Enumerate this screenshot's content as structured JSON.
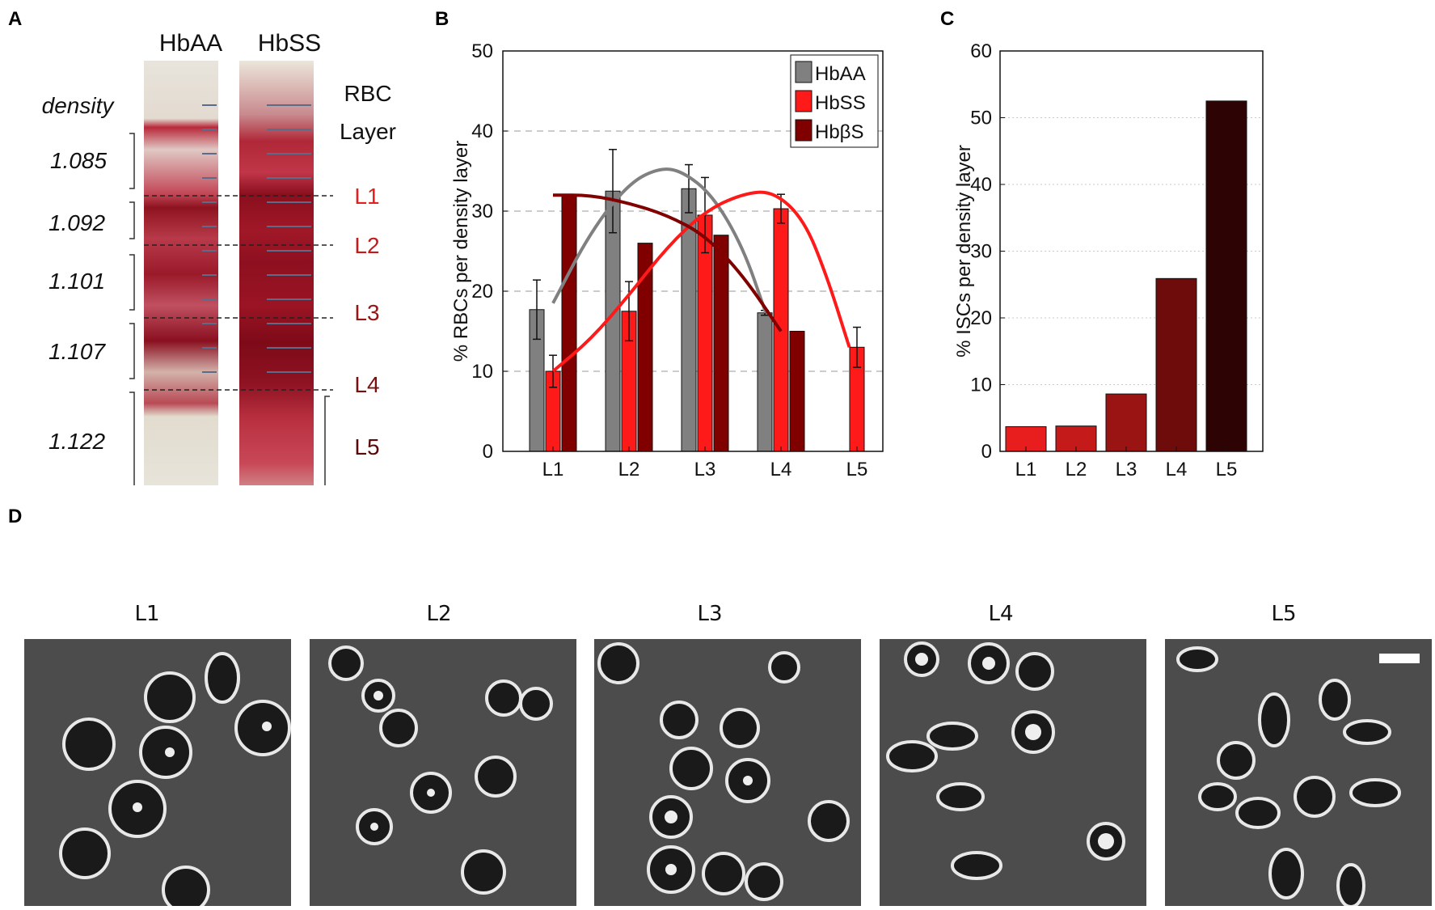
{
  "panels": {
    "a": "A",
    "b": "B",
    "c": "C",
    "d": "D"
  },
  "panel_a": {
    "tube_labels": [
      "HbAA",
      "HbSS"
    ],
    "density_heading": "density",
    "densities": [
      "1.085",
      "1.092",
      "1.101",
      "1.107",
      "1.122"
    ],
    "layer_heading_line1": "RBC",
    "layer_heading_line2": "Layer",
    "layers": [
      {
        "label": "L1",
        "color": "#e81e1e"
      },
      {
        "label": "L2",
        "color": "#c41a1a"
      },
      {
        "label": "L3",
        "color": "#9b1414"
      },
      {
        "label": "L4",
        "color": "#7a0f0f"
      },
      {
        "label": "L5",
        "color": "#5a0808"
      }
    ]
  },
  "chart_data": [
    {
      "type": "bar",
      "panel": "B",
      "title": "",
      "xlabel": "",
      "ylabel": "% RBCs per density layer",
      "ylim": [
        0,
        50
      ],
      "yticks": [
        0,
        10,
        20,
        30,
        40,
        50
      ],
      "grid": "dashed horizontal at 10, 20, 30, 40",
      "categories": [
        "L1",
        "L2",
        "L3",
        "L4",
        "L5"
      ],
      "legend_position": "top-right",
      "series": [
        {
          "name": "HbAA",
          "color": "#808080",
          "values": [
            17.7,
            32.5,
            32.8,
            17.3,
            null
          ],
          "errors": [
            3.7,
            5.2,
            3.0,
            0.3,
            null
          ]
        },
        {
          "name": "HbSS",
          "color": "#ff1a1a",
          "values": [
            10.0,
            17.5,
            29.5,
            30.3,
            13.0
          ],
          "errors": [
            2.0,
            3.7,
            4.7,
            1.8,
            2.5
          ]
        },
        {
          "name": "HbβS",
          "color": "#800000",
          "values": [
            32.0,
            26.0,
            27.0,
            15.0,
            null
          ],
          "errors": [
            null,
            null,
            null,
            null,
            null
          ]
        }
      ],
      "fits": [
        {
          "name": "HbAA",
          "color": "#808080",
          "x": [
            1,
            1.5,
            2.0,
            2.4,
            2.7,
            3.1,
            3.5,
            3.8
          ],
          "y": [
            18.5,
            27.5,
            33.5,
            35.4,
            35.0,
            32.0,
            25.5,
            17.3
          ]
        },
        {
          "name": "HbSS",
          "color": "#ff1a1a",
          "x": [
            1,
            1.5,
            2.0,
            2.5,
            3.0,
            3.5,
            3.9,
            4.3,
            4.6,
            4.9
          ],
          "y": [
            10.0,
            14.0,
            19.5,
            25.5,
            30.0,
            32.2,
            32.5,
            29.0,
            22.0,
            13.0
          ]
        },
        {
          "name": "HbβS",
          "color": "#800000",
          "x": [
            1,
            1.5,
            2.0,
            2.5,
            3.0,
            3.5,
            4.0
          ],
          "y": [
            32.0,
            32.0,
            31.0,
            29.5,
            27.0,
            22.0,
            15.0
          ]
        }
      ]
    },
    {
      "type": "bar",
      "panel": "C",
      "title": "",
      "xlabel": "",
      "ylabel": "% ISCs per density layer",
      "ylim": [
        0,
        60
      ],
      "yticks": [
        0,
        10,
        20,
        30,
        40,
        50,
        60
      ],
      "grid": "dotted horizontal at 10, 20, 30, 40, 50",
      "categories": [
        "L1",
        "L2",
        "L3",
        "L4",
        "L5"
      ],
      "values": [
        3.7,
        3.8,
        8.6,
        25.9,
        52.5
      ],
      "colors": [
        "#e81e1e",
        "#c41a1a",
        "#9b1414",
        "#6e0b0b",
        "#2e0303"
      ]
    }
  ],
  "panel_d": {
    "labels": [
      "L1",
      "L2",
      "L3",
      "L4",
      "L5"
    ]
  }
}
